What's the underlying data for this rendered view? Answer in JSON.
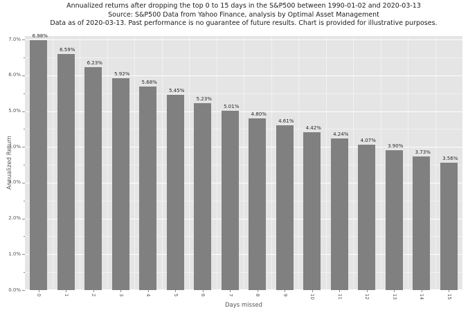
{
  "chart_data": {
    "type": "bar",
    "title_lines": [
      "Annualized returns after dropping the top 0 to 15 days in the S&P500 between 1990-01-02 and 2020-03-13",
      "Source: S&P500 Data from Yahoo Finance, analysis by Optimal Asset Management",
      "Data as of 2020-03-13. Past performance is no guarantee of future results. Chart is provided for illustrative purposes."
    ],
    "xlabel": "Days missed",
    "ylabel": "Annualized Return",
    "categories": [
      "0",
      "1",
      "2",
      "3",
      "4",
      "5",
      "6",
      "7",
      "8",
      "9",
      "10",
      "11",
      "12",
      "13",
      "14",
      "15"
    ],
    "values": [
      6.98,
      6.59,
      6.23,
      5.92,
      5.68,
      5.45,
      5.23,
      5.01,
      4.8,
      4.61,
      4.42,
      4.24,
      4.07,
      3.9,
      3.73,
      3.56
    ],
    "value_labels": [
      "6.98%",
      "6.59%",
      "6.23%",
      "5.92%",
      "5.68%",
      "5.45%",
      "5.23%",
      "5.01%",
      "4.80%",
      "4.61%",
      "4.42%",
      "4.24%",
      "4.07%",
      "3.90%",
      "3.73%",
      "3.56%"
    ],
    "ytick_values": [
      0,
      1,
      2,
      3,
      4,
      5,
      6,
      7
    ],
    "ytick_labels": [
      "0.0%",
      "1.0%",
      "2.0%",
      "3.0%",
      "4.0%",
      "5.0%",
      "6.0%",
      "7.0%"
    ],
    "ylim": [
      0,
      7.1
    ],
    "grid": true,
    "legend": "none",
    "colors": {
      "bar": "#808080",
      "plot_background": "#e5e5e5",
      "gridline": "#ffffff",
      "tick_text": "#555555",
      "title_text": "#1a1a1a",
      "value_label_text": "#262626"
    }
  }
}
